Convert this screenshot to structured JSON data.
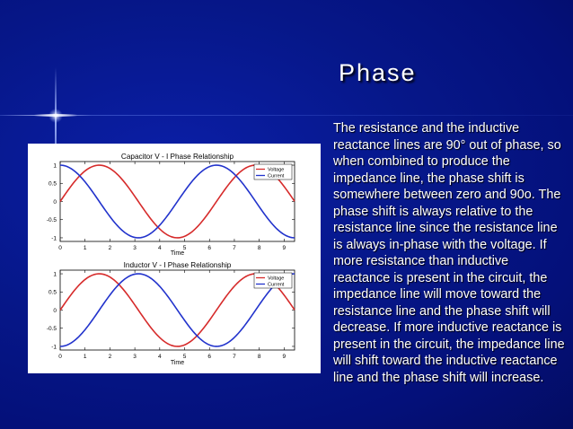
{
  "slide": {
    "title": "Phase",
    "body": "The resistance and the inductive reactance lines are 90° out of phase, so when combined to produce the impedance line, the phase shift is somewhere between zero and 90o. The phase shift is always relative to the resistance line since the resistance line is always in-phase with the voltage. If more resistance than inductive reactance is present in the circuit, the impedance line will move toward the resistance line and the phase shift will decrease. If more inductive reactance is present in the circuit, the impedance line will shift toward the inductive reactance line and the phase shift will increase."
  },
  "colors": {
    "voltage": "#d62b2b",
    "current": "#2233cc",
    "background": "#061789"
  },
  "chart_data": [
    {
      "type": "line",
      "title": "Capacitor V - I Phase Relationship",
      "xlabel": "Time",
      "ylabel": "",
      "xlim": [
        0,
        9.42
      ],
      "ylim": [
        -1.1,
        1.1
      ],
      "xticks": [
        "0",
        "1",
        "2",
        "3",
        "4",
        "5",
        "6",
        "7",
        "8",
        "9"
      ],
      "yticks": [
        "1",
        "0.5",
        "0",
        "-0.5",
        "-1"
      ],
      "legend": "top-right",
      "series": [
        {
          "name": "Voltage",
          "function": "sin(x)"
        },
        {
          "name": "Current",
          "function": "cos(x)"
        }
      ]
    },
    {
      "type": "line",
      "title": "Inductor V - I Phase Relationship",
      "xlabel": "Time",
      "ylabel": "",
      "xlim": [
        0,
        9.42
      ],
      "ylim": [
        -1.1,
        1.1
      ],
      "xticks": [
        "0",
        "1",
        "2",
        "3",
        "4",
        "5",
        "6",
        "7",
        "8",
        "9"
      ],
      "yticks": [
        "1",
        "0.5",
        "0",
        "-0.5",
        "-1"
      ],
      "legend": "top-right",
      "series": [
        {
          "name": "Voltage",
          "function": "sin(x)"
        },
        {
          "name": "Current",
          "function": "-cos(x)"
        }
      ]
    }
  ]
}
